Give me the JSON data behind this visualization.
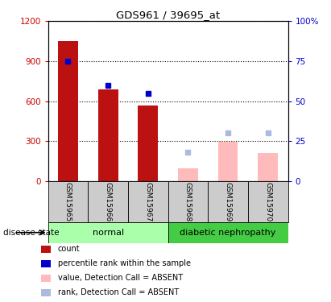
{
  "title": "GDS961 / 39695_at",
  "samples": [
    "GSM15965",
    "GSM15966",
    "GSM15967",
    "GSM15968",
    "GSM15969",
    "GSM15970"
  ],
  "bar_colors_present": "#bb1111",
  "bar_colors_absent": "#ffbbbb",
  "dot_colors_present": "#0000cc",
  "dot_colors_absent": "#aabbdd",
  "count_values": [
    1050,
    690,
    570,
    null,
    null,
    null
  ],
  "count_absent": [
    null,
    null,
    null,
    95,
    295,
    210
  ],
  "rank_pct_present": [
    75,
    60,
    55,
    null,
    null,
    null
  ],
  "rank_pct_absent": [
    null,
    null,
    null,
    18,
    30,
    30
  ],
  "ylim_left": [
    0,
    1200
  ],
  "ylim_right": [
    0,
    100
  ],
  "yticks_left": [
    0,
    300,
    600,
    900,
    1200
  ],
  "yticks_right": [
    0,
    25,
    50,
    75,
    100
  ],
  "yticklabels_left": [
    "0",
    "300",
    "600",
    "900",
    "1200"
  ],
  "yticklabels_right": [
    "0",
    "25",
    "50",
    "75",
    "100%"
  ],
  "legend_items": [
    {
      "label": "count",
      "color": "#bb1111"
    },
    {
      "label": "percentile rank within the sample",
      "color": "#0000cc"
    },
    {
      "label": "value, Detection Call = ABSENT",
      "color": "#ffbbbb"
    },
    {
      "label": "rank, Detection Call = ABSENT",
      "color": "#aabbdd"
    }
  ],
  "normal_color": "#aaffaa",
  "diabetic_color": "#44cc44",
  "sample_box_color": "#cccccc",
  "bar_width": 0.5
}
